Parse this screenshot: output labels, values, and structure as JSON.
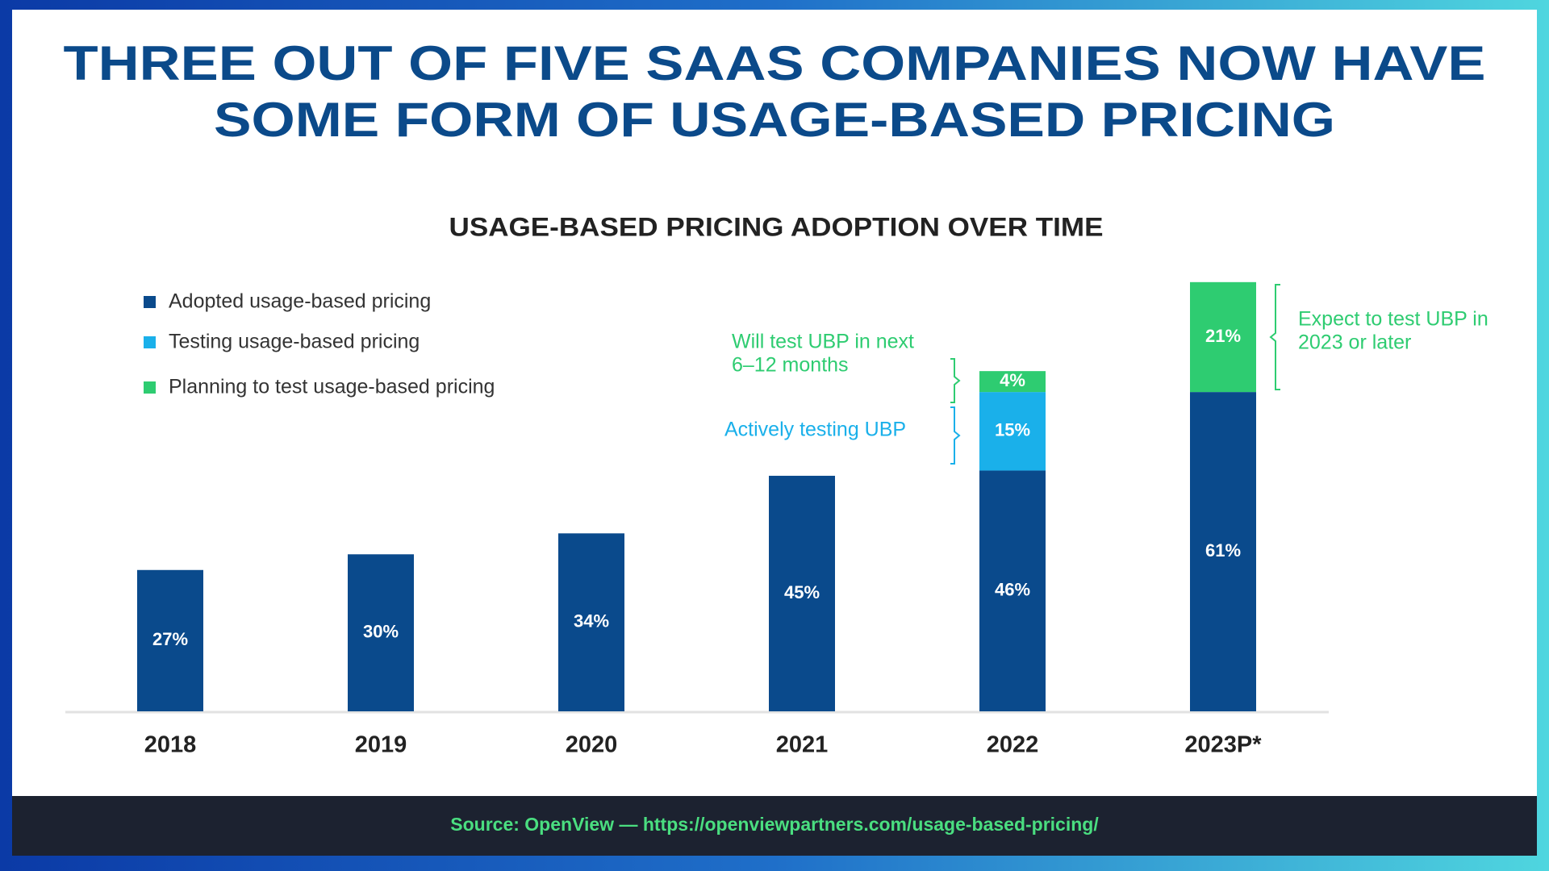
{
  "chart_data": {
    "type": "stacked-bar",
    "title": [
      "THREE OUT OF FIVE SAAS COMPANIES NOW HAVE",
      "SOME FORM OF USAGE-BASED PRICING"
    ],
    "subtitle": "USAGE-BASED PRICING ADOPTION OVER TIME",
    "categories": [
      "2018",
      "2019",
      "2020",
      "2021",
      "2022",
      "2023P*"
    ],
    "series": [
      {
        "name": "Adopted usage-based pricing",
        "color": "#0a4a8c",
        "values": [
          27,
          30,
          34,
          45,
          46,
          61
        ],
        "value_labels": [
          "27%",
          "30%",
          "34%",
          "45%",
          "46%",
          "61%"
        ]
      },
      {
        "name": "Testing usage-based pricing",
        "color": "#1ab0ea",
        "values": [
          null,
          null,
          null,
          null,
          15,
          null
        ],
        "value_labels": [
          null,
          null,
          null,
          null,
          "15%",
          null
        ]
      },
      {
        "name": "Planning to test usage-based pricing",
        "color": "#2ecc71",
        "values": [
          null,
          null,
          null,
          null,
          4,
          21
        ],
        "value_labels": [
          null,
          null,
          null,
          null,
          "4%",
          "21%"
        ]
      }
    ],
    "annotations": [
      {
        "lines": [
          "Will test UBP in next",
          "6–12 months"
        ],
        "color": "#2ecc71"
      },
      {
        "lines": [
          "Actively testing UBP"
        ],
        "color": "#1ab0ea"
      },
      {
        "lines": [
          "Expect to test UBP in",
          "2023 or later"
        ],
        "color": "#2ecc71"
      }
    ],
    "source": "Source: OpenView — https://openviewpartners.com/usage-based-pricing/"
  }
}
